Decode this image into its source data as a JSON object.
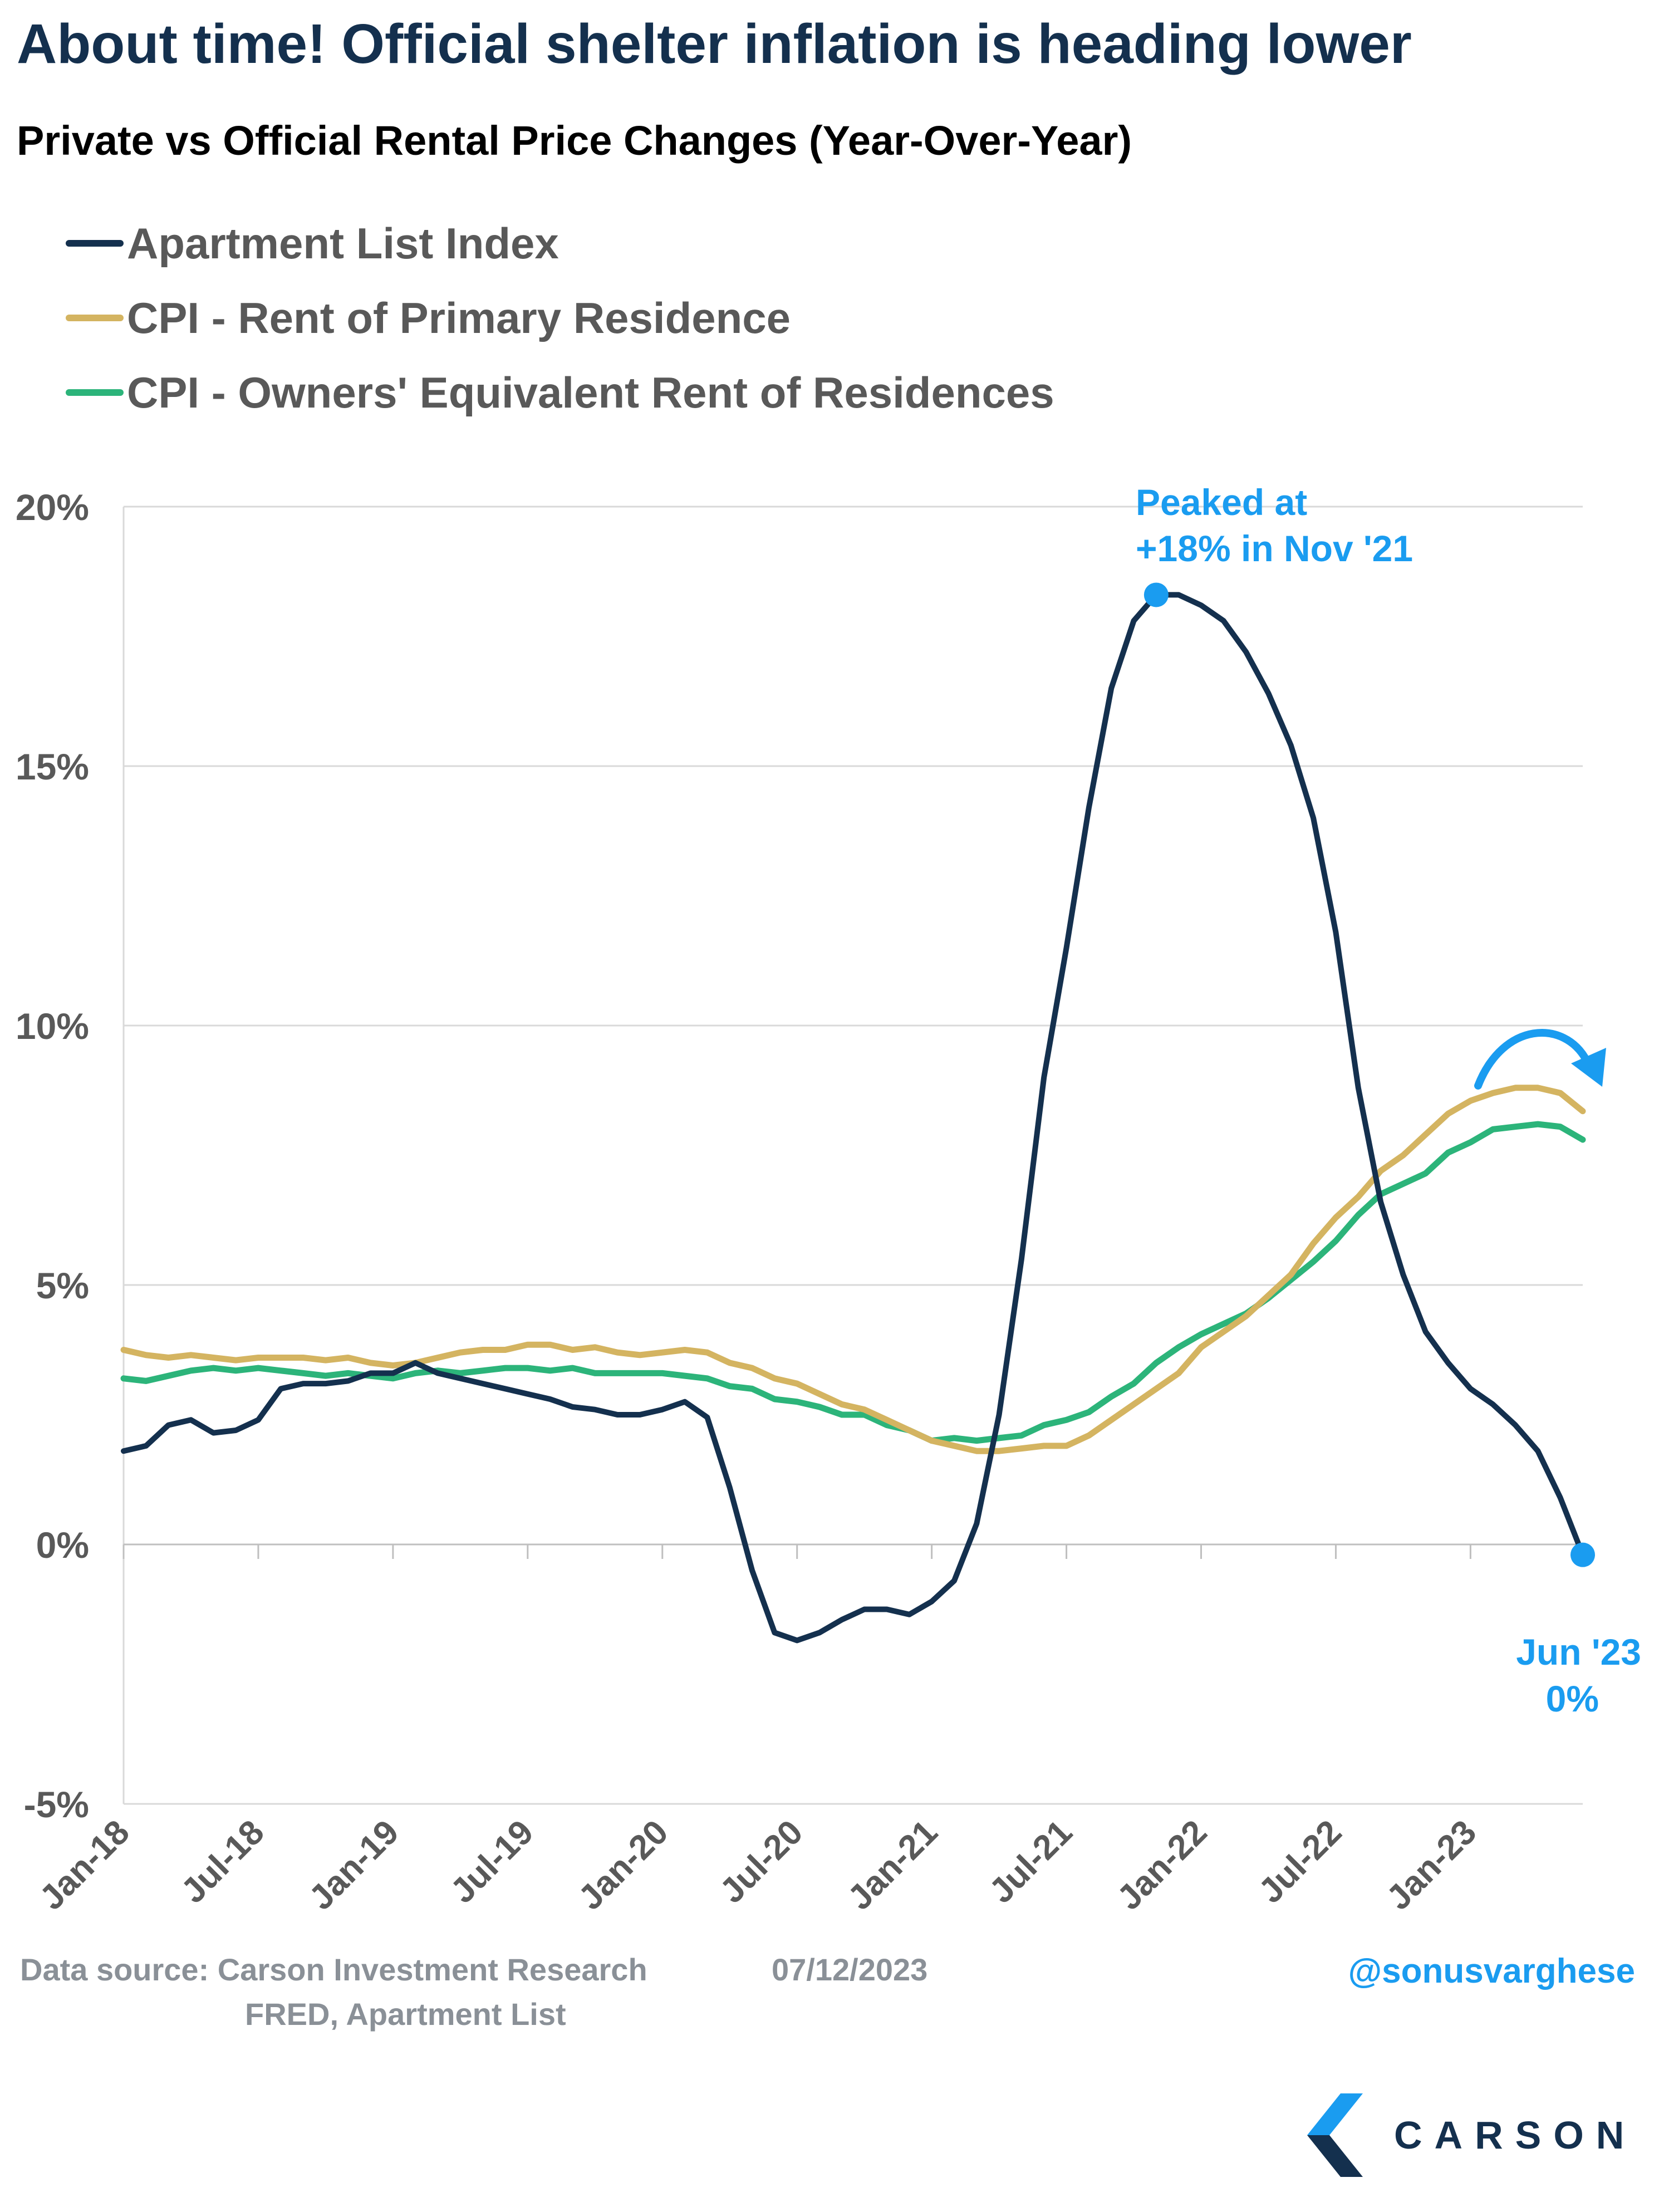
{
  "title": "About time! Official shelter inflation is heading lower",
  "subtitle": "Private vs Official Rental Price Changes (Year-Over-Year)",
  "colors": {
    "apartment_list": "#14304e",
    "cpi_rent": "#d4b461",
    "cpi_oer": "#2cb47a",
    "annotation": "#1a9cf0",
    "axis_text": "#595959",
    "grid": "#d9d9d9"
  },
  "chart_data": {
    "type": "line",
    "x": [
      "Jan-18",
      "Feb-18",
      "Mar-18",
      "Apr-18",
      "May-18",
      "Jun-18",
      "Jul-18",
      "Aug-18",
      "Sep-18",
      "Oct-18",
      "Nov-18",
      "Dec-18",
      "Jan-19",
      "Feb-19",
      "Mar-19",
      "Apr-19",
      "May-19",
      "Jun-19",
      "Jul-19",
      "Aug-19",
      "Sep-19",
      "Oct-19",
      "Nov-19",
      "Dec-19",
      "Jan-20",
      "Feb-20",
      "Mar-20",
      "Apr-20",
      "May-20",
      "Jun-20",
      "Jul-20",
      "Aug-20",
      "Sep-20",
      "Oct-20",
      "Nov-20",
      "Dec-20",
      "Jan-21",
      "Feb-21",
      "Mar-21",
      "Apr-21",
      "May-21",
      "Jun-21",
      "Jul-21",
      "Aug-21",
      "Sep-21",
      "Oct-21",
      "Nov-21",
      "Dec-21",
      "Jan-22",
      "Feb-22",
      "Mar-22",
      "Apr-22",
      "May-22",
      "Jun-22",
      "Jul-22",
      "Aug-22",
      "Sep-22",
      "Oct-22",
      "Nov-22",
      "Dec-22",
      "Jan-23",
      "Feb-23",
      "Mar-23",
      "Apr-23",
      "May-23",
      "Jun-23"
    ],
    "tick_labels": [
      "Jan-18",
      "Jul-18",
      "Jan-19",
      "Jul-19",
      "Jan-20",
      "Jul-20",
      "Jan-21",
      "Jul-21",
      "Jan-22",
      "Jul-22",
      "Jan-23"
    ],
    "series": [
      {
        "name": "Apartment List Index",
        "values": [
          1.8,
          1.9,
          2.3,
          2.4,
          2.15,
          2.2,
          2.4,
          3.0,
          3.1,
          3.1,
          3.15,
          3.3,
          3.3,
          3.5,
          3.3,
          3.2,
          3.1,
          3.0,
          2.9,
          2.8,
          2.65,
          2.6,
          2.5,
          2.5,
          2.6,
          2.75,
          2.45,
          1.1,
          -0.5,
          -1.7,
          -1.85,
          -1.7,
          -1.45,
          -1.25,
          -1.25,
          -1.35,
          -1.1,
          -0.7,
          0.4,
          2.5,
          5.5,
          9.0,
          11.5,
          14.2,
          16.5,
          17.8,
          18.3,
          18.3,
          18.1,
          17.8,
          17.2,
          16.4,
          15.4,
          14.0,
          11.8,
          8.8,
          6.6,
          5.2,
          4.1,
          3.5,
          3.0,
          2.7,
          2.3,
          1.8,
          0.9,
          -0.2
        ]
      },
      {
        "name": "CPI - Rent of Primary Residence",
        "values": [
          3.75,
          3.65,
          3.6,
          3.65,
          3.6,
          3.55,
          3.6,
          3.6,
          3.6,
          3.55,
          3.6,
          3.5,
          3.45,
          3.5,
          3.6,
          3.7,
          3.75,
          3.75,
          3.85,
          3.85,
          3.75,
          3.8,
          3.7,
          3.65,
          3.7,
          3.75,
          3.7,
          3.5,
          3.4,
          3.2,
          3.1,
          2.9,
          2.7,
          2.6,
          2.4,
          2.2,
          2.0,
          1.9,
          1.8,
          1.8,
          1.85,
          1.9,
          1.9,
          2.1,
          2.4,
          2.7,
          3.0,
          3.3,
          3.8,
          4.1,
          4.4,
          4.8,
          5.2,
          5.8,
          6.3,
          6.7,
          7.2,
          7.5,
          7.9,
          8.3,
          8.55,
          8.7,
          8.8,
          8.8,
          8.7,
          8.35
        ]
      },
      {
        "name": "CPI - Owners' Equivalent Rent of Residences",
        "values": [
          3.2,
          3.15,
          3.25,
          3.35,
          3.4,
          3.35,
          3.4,
          3.35,
          3.3,
          3.25,
          3.3,
          3.25,
          3.2,
          3.3,
          3.35,
          3.3,
          3.35,
          3.4,
          3.4,
          3.35,
          3.4,
          3.3,
          3.3,
          3.3,
          3.3,
          3.25,
          3.2,
          3.05,
          3.0,
          2.8,
          2.75,
          2.65,
          2.5,
          2.5,
          2.3,
          2.2,
          2.0,
          2.05,
          2.0,
          2.05,
          2.1,
          2.3,
          2.4,
          2.55,
          2.85,
          3.1,
          3.5,
          3.8,
          4.05,
          4.25,
          4.45,
          4.75,
          5.1,
          5.45,
          5.85,
          6.35,
          6.75,
          6.95,
          7.15,
          7.55,
          7.75,
          8.0,
          8.05,
          8.1,
          8.05,
          7.8
        ]
      }
    ],
    "y_ticks": [
      "-5%",
      "0%",
      "5%",
      "10%",
      "15%",
      "20%"
    ],
    "ylim": [
      -5,
      20
    ],
    "grid": true,
    "legend_position": "top-left",
    "annotations": {
      "peak": "Peaked at +18% in Nov '21",
      "peak_line1": "Peaked at",
      "peak_line2": "+18% in Nov '21",
      "peak_point": {
        "x": "Nov-21",
        "y": 18.3
      },
      "latest_line1": "Jun '23",
      "latest_line2": "0%",
      "latest_point": {
        "x": "Jun-23",
        "y": -0.2
      },
      "arrow": "curved arrow indicating CPI rolling over"
    }
  },
  "footer": {
    "source_line1": "Data source: Carson Investment Research",
    "source_line2": "FRED, Apartment List",
    "date": "07/12/2023",
    "handle": "@sonusvarghese"
  },
  "logo": {
    "word": "CARSON",
    "icon": "carson-chevron-logo"
  }
}
